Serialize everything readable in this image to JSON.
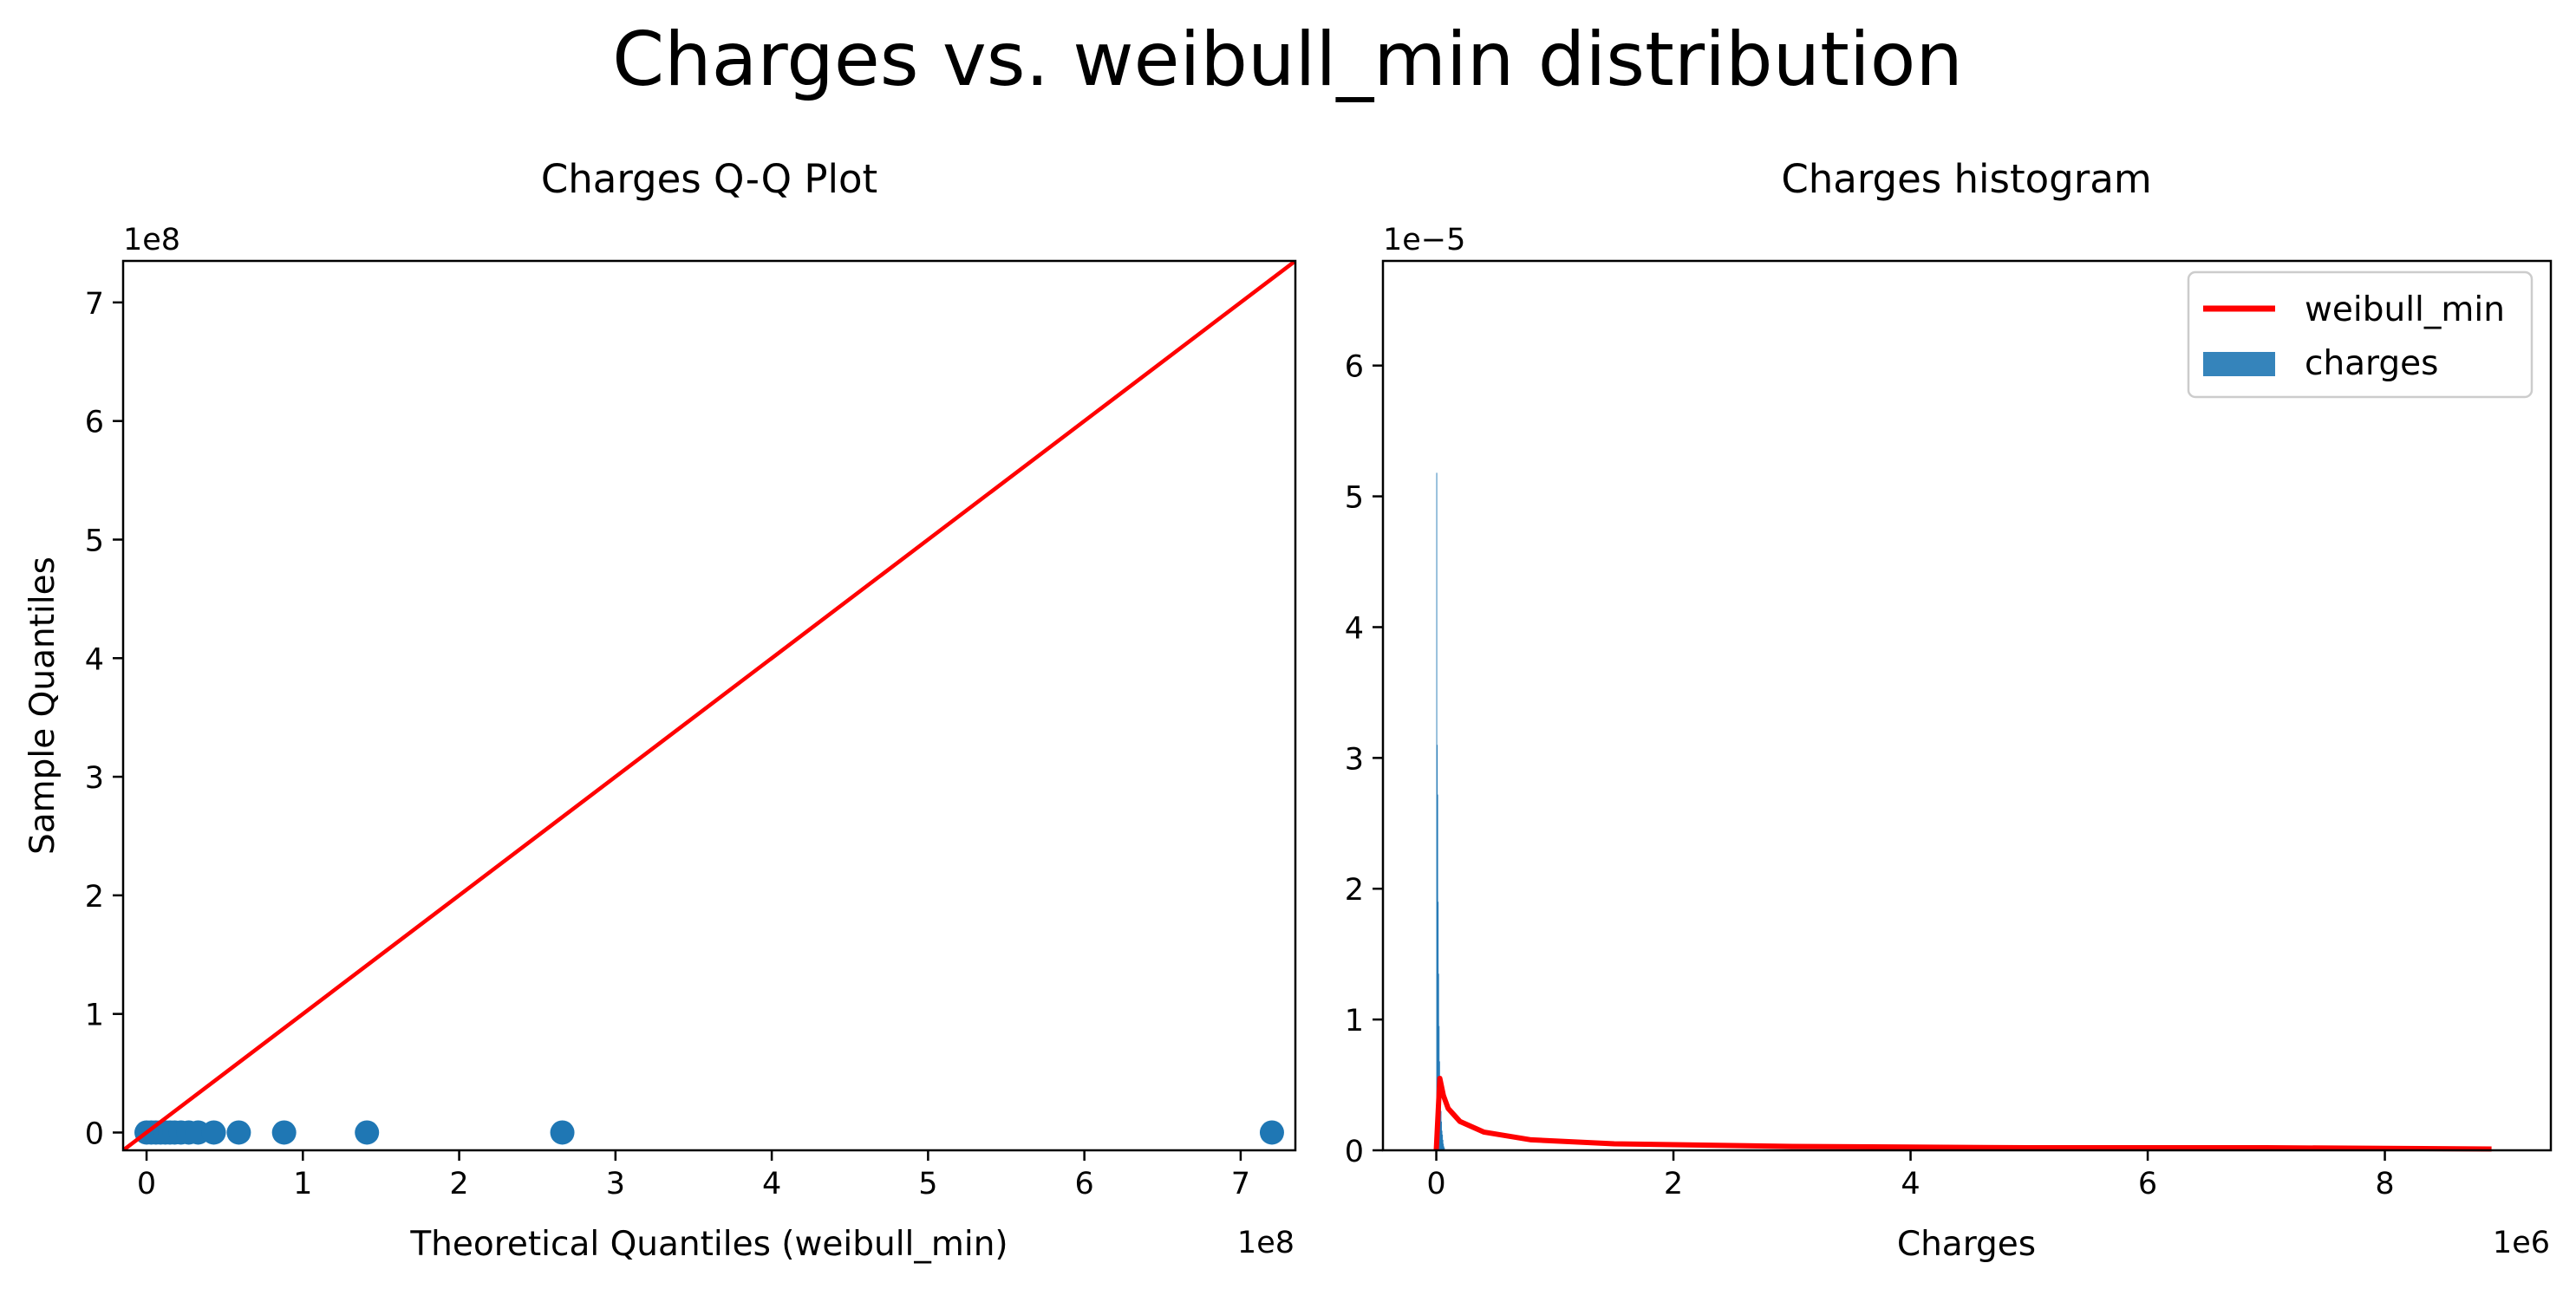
{
  "figure": {
    "title": "Charges vs. weibull_min distribution"
  },
  "colors": {
    "line": "#ff0000",
    "points": "#1f77b4",
    "bars": "#1f77b4",
    "axes": "#000000"
  },
  "chart_data": [
    {
      "type": "scatter",
      "title": "Charges Q-Q Plot",
      "xlabel": "Theoretical Quantiles (weibull_min)",
      "ylabel": "Sample Quantiles",
      "x_offset_label": "1e8",
      "y_offset_label": "1e8",
      "x_scale_factor": 100000000,
      "y_scale_factor": 100000000,
      "xlim": [
        -0.15,
        7.35
      ],
      "ylim": [
        -0.15,
        7.35
      ],
      "x_ticks": [
        0,
        1,
        2,
        3,
        4,
        5,
        6,
        7
      ],
      "y_ticks": [
        0,
        1,
        2,
        3,
        4,
        5,
        6,
        7
      ],
      "grid": false,
      "points": {
        "name": "",
        "x": [
          0.0,
          0.03,
          0.06,
          0.09,
          0.12,
          0.15,
          0.18,
          0.22,
          0.27,
          0.33,
          0.43,
          0.59,
          0.88,
          1.41,
          2.66,
          7.2
        ],
        "y": [
          0.0,
          0.0,
          0.0,
          0.0,
          0.0,
          0.0,
          0.0,
          0.0,
          0.0,
          0.0,
          0.0,
          0.0,
          0.0,
          0.0,
          0.0,
          0.0
        ]
      },
      "reference_line": {
        "name": "",
        "x": [
          -0.15,
          7.35
        ],
        "y": [
          -0.15,
          7.35
        ]
      }
    },
    {
      "type": "bar",
      "title": "Charges histogram",
      "xlabel": "Charges",
      "ylabel": "",
      "x_offset_label": "1e6",
      "y_offset_label": "1e−5",
      "x_scale_factor": 1000000,
      "y_scale_factor": 1e-05,
      "xlim": [
        -0.45,
        9.4
      ],
      "ylim": [
        0,
        6.8
      ],
      "x_ticks": [
        0,
        2,
        4,
        6,
        8
      ],
      "y_ticks": [
        0,
        1,
        2,
        3,
        4,
        5,
        6
      ],
      "grid": false,
      "legend": {
        "position": "upper-right",
        "entries": [
          {
            "name": "weibull_min",
            "kind": "line"
          },
          {
            "name": "charges",
            "kind": "patch"
          }
        ]
      },
      "histogram": {
        "name": "charges",
        "bin_edges": [
          0.0,
          0.004,
          0.008,
          0.012,
          0.016,
          0.02,
          0.024,
          0.028,
          0.032,
          0.036,
          0.04,
          0.044,
          0.048,
          0.052,
          0.056,
          0.06,
          0.064,
          0.068
        ],
        "values": [
          5.18,
          3.1,
          2.72,
          1.9,
          1.35,
          0.95,
          0.68,
          0.55,
          0.42,
          0.3,
          0.22,
          0.15,
          0.12,
          0.08,
          0.05,
          0.03,
          0.02
        ]
      },
      "pdf_line": {
        "name": "weibull_min",
        "x": [
          0.0,
          0.03,
          0.06,
          0.1,
          0.2,
          0.4,
          0.8,
          1.5,
          3.0,
          5.0,
          7.0,
          8.9
        ],
        "y": [
          0.0,
          0.55,
          0.42,
          0.32,
          0.22,
          0.14,
          0.08,
          0.05,
          0.03,
          0.02,
          0.02,
          0.01
        ]
      }
    }
  ]
}
